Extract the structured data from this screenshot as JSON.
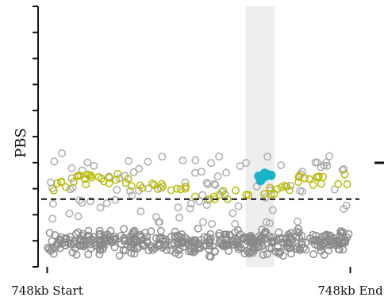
{
  "chart_data": {
    "type": "scatter",
    "title": "",
    "xlabel": "",
    "ylabel": "PBS",
    "xticks": [
      {
        "value": 0,
        "label": "748kb Start"
      },
      {
        "value": 100,
        "label": "748kb End"
      }
    ],
    "xlim": [
      -3,
      103
    ],
    "ylim": [
      0,
      10
    ],
    "grid": false,
    "legend": "none",
    "threshold": {
      "y": 2.6,
      "style": "dashed",
      "color": "#111111"
    },
    "highlight_band": {
      "x_from": 65.5,
      "x_to": 75,
      "color": "#eeeeee"
    },
    "series": [
      {
        "role": "background",
        "color": "#8a8a8a",
        "marker": "open-circle",
        "n": 430,
        "x_range": [
          0,
          100
        ],
        "y_range": [
          0.3,
          1.6
        ]
      },
      {
        "role": "elevated",
        "color": "#a8a8a8",
        "marker": "open-circle",
        "n": 95,
        "x_range": [
          0,
          100
        ],
        "y_range": [
          1.6,
          4.4
        ]
      },
      {
        "role": "candidate",
        "color": "#b5b800",
        "marker": "open-circle",
        "n": 70,
        "x_range": [
          2,
          100
        ],
        "y_range": [
          2.6,
          3.8
        ]
      },
      {
        "role": "focal",
        "color": "#1bb3c8",
        "marker": "filled-circle",
        "n": 8,
        "x_range": [
          69,
          74
        ],
        "y_range": [
          3.2,
          3.6
        ]
      }
    ],
    "side_marks": [
      {
        "type": "dash",
        "color": "#111111"
      }
    ]
  }
}
